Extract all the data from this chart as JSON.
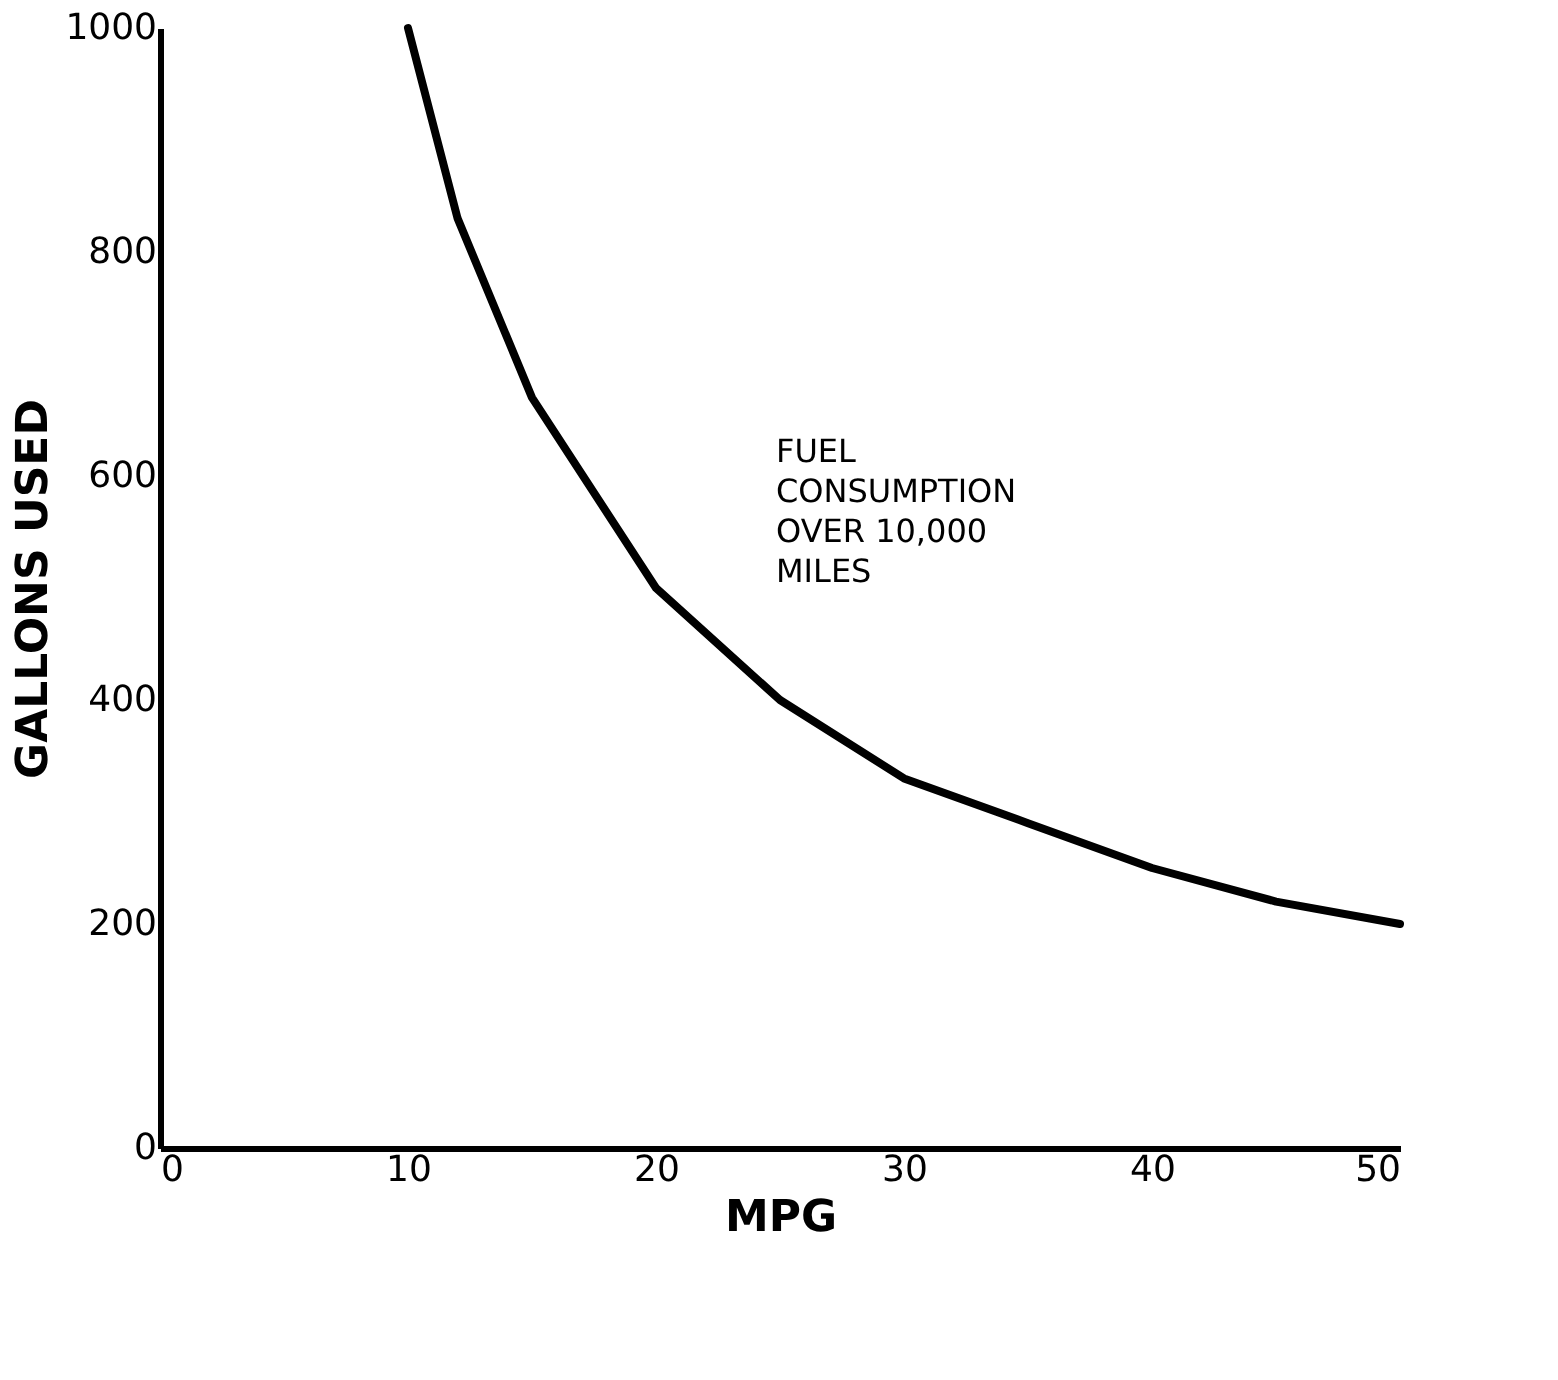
{
  "chart_data": {
    "type": "line",
    "xlabel": "MPG",
    "ylabel": "GALLONS USED",
    "xlim": [
      0,
      50
    ],
    "xticks": [
      0,
      10,
      20,
      30,
      40,
      50
    ],
    "ylim": [
      0,
      1000
    ],
    "yticks": [
      0,
      200,
      400,
      600,
      800,
      1000
    ],
    "grid": false,
    "marker": "none",
    "line_style": "solid",
    "series": [
      {
        "name": "FUEL CONSUMPTION OVER 10,000 MILES",
        "color": "#000000",
        "x": [
          10,
          12,
          15,
          20,
          25,
          30,
          35,
          40,
          45,
          50
        ],
        "values": [
          1000,
          830,
          670,
          500,
          400,
          330,
          290,
          250,
          220,
          200
        ]
      }
    ]
  }
}
